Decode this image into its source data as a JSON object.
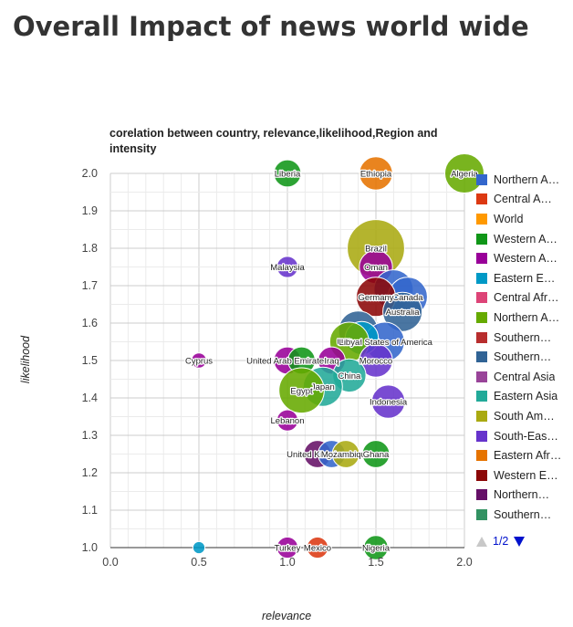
{
  "page": {
    "title": "Overall Impact of news world wide"
  },
  "chart_data": {
    "type": "scatter",
    "title": "corelation between country, relevance,likelihood,Region and intensity",
    "xlabel": "relevance",
    "ylabel": "likelihood",
    "xlim": [
      0,
      2
    ],
    "ylim": [
      1,
      2
    ],
    "x_ticks": [
      "0.0",
      "0.5",
      "1.0",
      "1.5",
      "2.0"
    ],
    "y_ticks": [
      "1.0",
      "1.1",
      "1.2",
      "1.3",
      "1.4",
      "1.5",
      "1.6",
      "1.7",
      "1.8",
      "1.9",
      "2.0"
    ],
    "grid": true,
    "legend_position": "right",
    "legend_page": "1/2",
    "legend": [
      {
        "name": "Northern A…",
        "color": "#3366cc"
      },
      {
        "name": "Central A…",
        "color": "#dc3912"
      },
      {
        "name": "World",
        "color": "#ff9900"
      },
      {
        "name": "Western A…",
        "color": "#109618"
      },
      {
        "name": "Western A…",
        "color": "#990099"
      },
      {
        "name": "Eastern E…",
        "color": "#0099c6"
      },
      {
        "name": "Central Afr…",
        "color": "#dd4477"
      },
      {
        "name": "Northern A…",
        "color": "#66aa00"
      },
      {
        "name": "Southern…",
        "color": "#b82e2e"
      },
      {
        "name": "Southern…",
        "color": "#316395"
      },
      {
        "name": "Central Asia",
        "color": "#994499"
      },
      {
        "name": "Eastern Asia",
        "color": "#22aa99"
      },
      {
        "name": "South Am…",
        "color": "#aaaa11"
      },
      {
        "name": "South-Eas…",
        "color": "#6633cc"
      },
      {
        "name": "Eastern Afr…",
        "color": "#e67300"
      },
      {
        "name": "Western E…",
        "color": "#8b0707"
      },
      {
        "name": "Northern…",
        "color": "#651067"
      },
      {
        "name": "Southern…",
        "color": "#329262"
      }
    ],
    "points": [
      {
        "label": "Liberia",
        "x": 1.0,
        "y": 2.0,
        "color": "#109618",
        "intensity": 3
      },
      {
        "label": "Ethiopia",
        "x": 1.5,
        "y": 2.0,
        "color": "#e67300",
        "intensity": 4
      },
      {
        "label": "Algeria",
        "x": 2.0,
        "y": 2.0,
        "color": "#66aa00",
        "intensity": 5
      },
      {
        "label": "Brazil",
        "x": 1.5,
        "y": 1.8,
        "color": "#aaaa11",
        "intensity": 8
      },
      {
        "label": "Malaysia",
        "x": 1.0,
        "y": 1.75,
        "color": "#6633cc",
        "intensity": 2
      },
      {
        "label": "Oman",
        "x": 1.5,
        "y": 1.75,
        "color": "#990099",
        "intensity": 4
      },
      {
        "label": "",
        "x": 1.6,
        "y": 1.69,
        "color": "#3366cc",
        "intensity": 5
      },
      {
        "label": "Canada",
        "x": 1.68,
        "y": 1.67,
        "color": "#3366cc",
        "intensity": 5
      },
      {
        "label": "Germany",
        "x": 1.5,
        "y": 1.67,
        "color": "#8b0707",
        "intensity": 5
      },
      {
        "label": "Australia",
        "x": 1.65,
        "y": 1.63,
        "color": "#316395",
        "intensity": 5
      },
      {
        "label": "",
        "x": 1.4,
        "y": 1.58,
        "color": "#316395",
        "intensity": 5
      },
      {
        "label": "United States of America",
        "x": 1.55,
        "y": 1.55,
        "color": "#3366cc",
        "intensity": 5
      },
      {
        "label": "",
        "x": 1.42,
        "y": 1.56,
        "color": "#0099c6",
        "intensity": 4
      },
      {
        "label": "Libya",
        "x": 1.35,
        "y": 1.55,
        "color": "#66aa00",
        "intensity": 5
      },
      {
        "label": "Cyprus",
        "x": 0.5,
        "y": 1.5,
        "color": "#990099",
        "intensity": 1
      },
      {
        "label": "United Arab Emirates",
        "x": 1.0,
        "y": 1.5,
        "color": "#990099",
        "intensity": 3
      },
      {
        "label": "",
        "x": 1.08,
        "y": 1.5,
        "color": "#109618",
        "intensity": 3
      },
      {
        "label": "Iraq",
        "x": 1.25,
        "y": 1.5,
        "color": "#990099",
        "intensity": 3
      },
      {
        "label": "Morocco",
        "x": 1.5,
        "y": 1.5,
        "color": "#6633cc",
        "intensity": 4
      },
      {
        "label": "China",
        "x": 1.35,
        "y": 1.46,
        "color": "#22aa99",
        "intensity": 4
      },
      {
        "label": "Japan",
        "x": 1.2,
        "y": 1.43,
        "color": "#22aa99",
        "intensity": 5
      },
      {
        "label": "Egypt",
        "x": 1.08,
        "y": 1.42,
        "color": "#66aa00",
        "intensity": 6
      },
      {
        "label": "Indonesia",
        "x": 1.57,
        "y": 1.39,
        "color": "#6633cc",
        "intensity": 4
      },
      {
        "label": "Lebanon",
        "x": 1.0,
        "y": 1.34,
        "color": "#990099",
        "intensity": 2
      },
      {
        "label": "United Kingdom",
        "x": 1.17,
        "y": 1.25,
        "color": "#651067",
        "intensity": 3
      },
      {
        "label": "",
        "x": 1.25,
        "y": 1.25,
        "color": "#3366cc",
        "intensity": 3
      },
      {
        "label": "Mozambique",
        "x": 1.33,
        "y": 1.25,
        "color": "#aaaa11",
        "intensity": 3
      },
      {
        "label": "Ghana",
        "x": 1.5,
        "y": 1.25,
        "color": "#109618",
        "intensity": 3
      },
      {
        "label": "",
        "x": 0.5,
        "y": 1.0,
        "color": "#0099c6",
        "intensity": 0.5
      },
      {
        "label": "Turkey",
        "x": 1.0,
        "y": 1.0,
        "color": "#990099",
        "intensity": 2
      },
      {
        "label": "Mexico",
        "x": 1.17,
        "y": 1.0,
        "color": "#dc3912",
        "intensity": 2
      },
      {
        "label": "Nigeria",
        "x": 1.5,
        "y": 1.0,
        "color": "#109618",
        "intensity": 2.5
      }
    ]
  }
}
